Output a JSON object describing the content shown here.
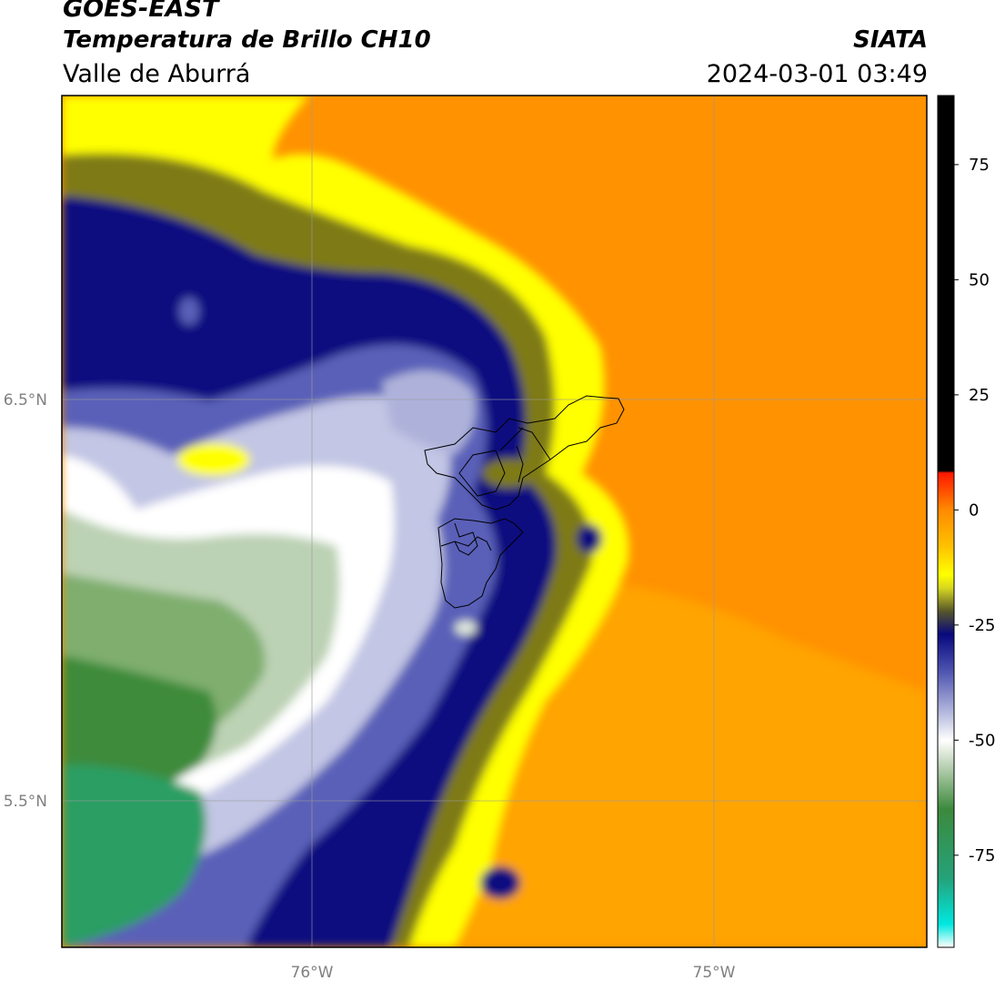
{
  "header": {
    "satellite": "GOES-EAST",
    "product": "Temperatura de Brillo CH10",
    "region": "Valle de Aburrá",
    "brand": "SIATA",
    "datetime": "2024-03-01 03:49"
  },
  "map": {
    "lat_labels": [
      "6.5°N",
      "5.5°N"
    ],
    "lon_labels": [
      "76°W",
      "75°W"
    ]
  },
  "colorbar": {
    "ticks": [
      "75",
      "50",
      "25",
      "0",
      "-25",
      "-50",
      "-75"
    ],
    "tick_values": [
      75,
      50,
      25,
      0,
      -25,
      -50,
      -75
    ],
    "range": [
      -95,
      90
    ],
    "stops": [
      {
        "v": -95,
        "c": "#ffffff"
      },
      {
        "v": -90,
        "c": "#00e8e0"
      },
      {
        "v": -80,
        "c": "#25a27a"
      },
      {
        "v": -65,
        "c": "#3c8a3c"
      },
      {
        "v": -55,
        "c": "#c2d6bc"
      },
      {
        "v": -50,
        "c": "#ffffff"
      },
      {
        "v": -45,
        "c": "#c0c4e2"
      },
      {
        "v": -35,
        "c": "#4e54b0"
      },
      {
        "v": -27,
        "c": "#08087e"
      },
      {
        "v": -22,
        "c": "#56562a"
      },
      {
        "v": -17,
        "c": "#d6d620"
      },
      {
        "v": -14,
        "c": "#ffff00"
      },
      {
        "v": -8,
        "c": "#ffc200"
      },
      {
        "v": 0,
        "c": "#ff8a00"
      },
      {
        "v": 8,
        "c": "#ff1800"
      },
      {
        "v": 8.5,
        "c": "#000000"
      },
      {
        "v": 90,
        "c": "#000000"
      }
    ]
  }
}
